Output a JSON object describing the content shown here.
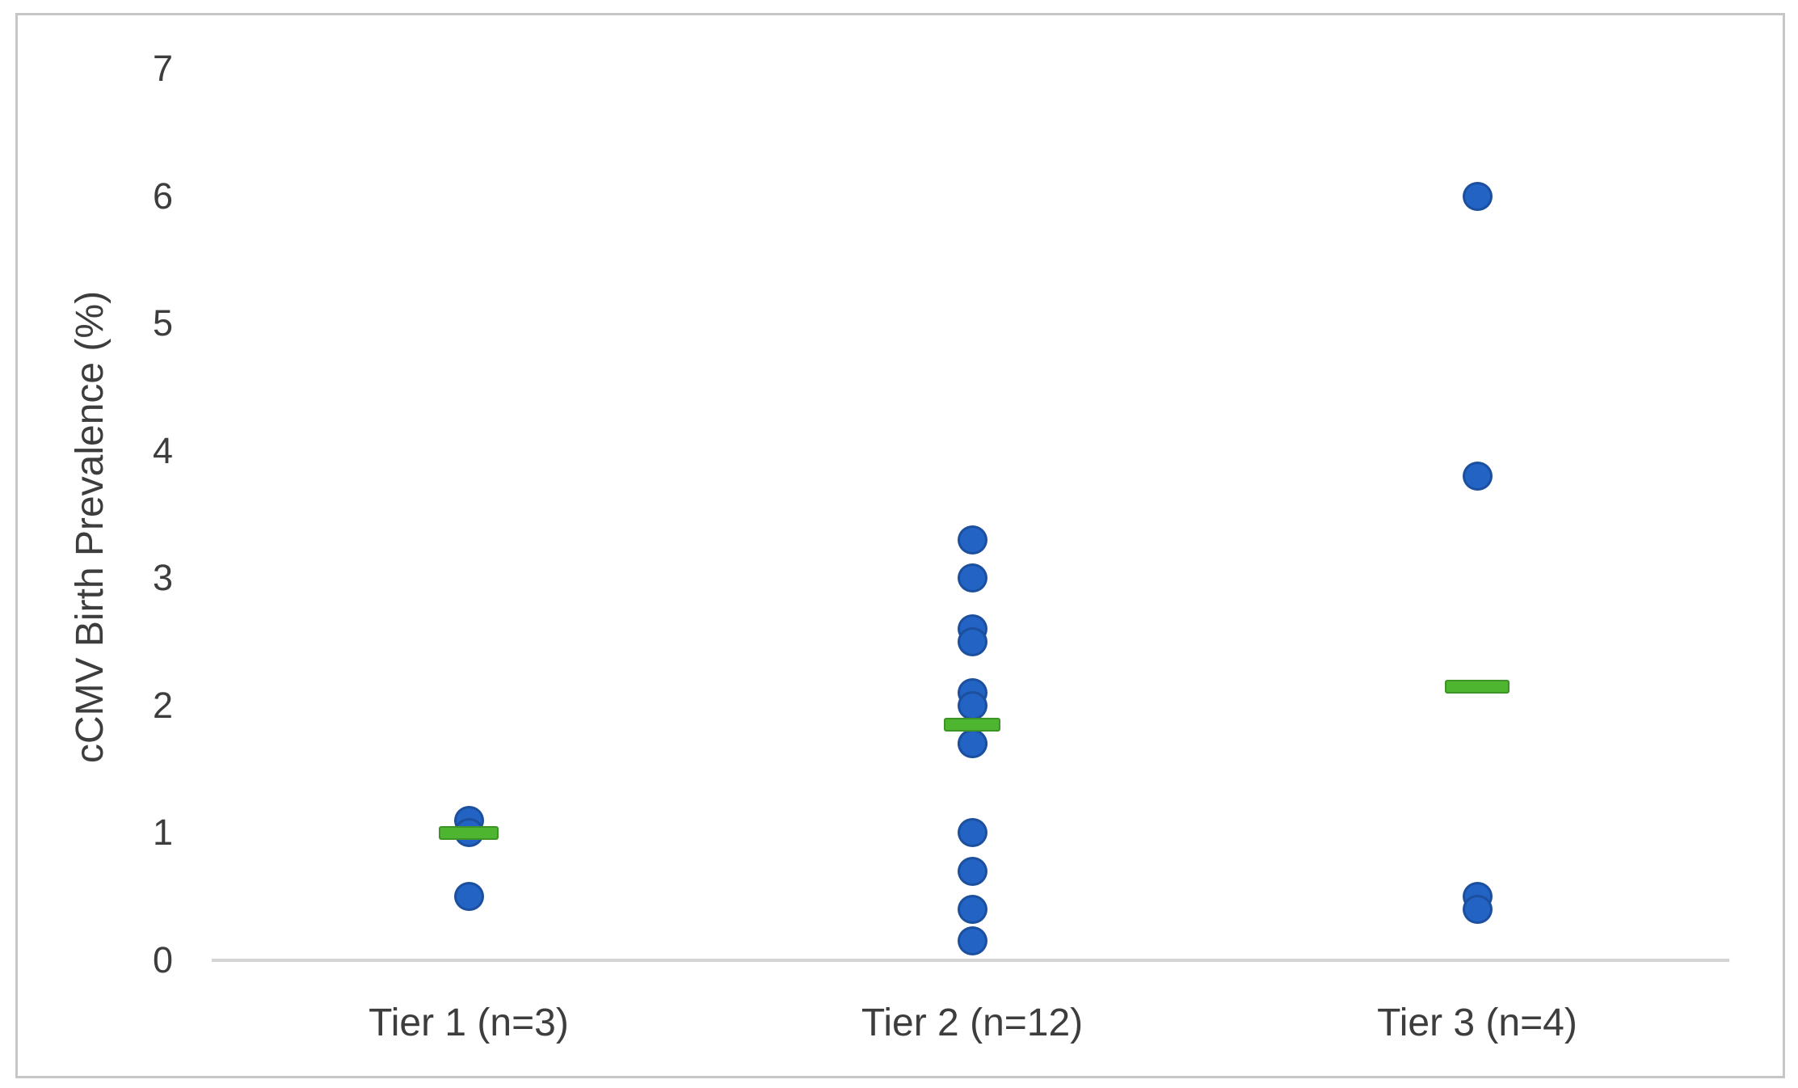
{
  "chart_data": {
    "type": "scatter",
    "title": "",
    "xlabel": "",
    "ylabel": "cCMV Birth Prevalence (%)",
    "ylim": [
      0,
      7
    ],
    "yticks": [
      0,
      1,
      2,
      3,
      4,
      5,
      6,
      7
    ],
    "grid": false,
    "legend_position": "none",
    "marker_color": "#2263c3",
    "median_marker_color": "#4eb531",
    "groups": [
      {
        "label": "Tier 1 (n=3)",
        "n": 3,
        "values": [
          1.1,
          1.0,
          0.5
        ],
        "median": 1.0
      },
      {
        "label": "Tier 2 (n=12)",
        "n": 12,
        "values": [
          3.3,
          3.0,
          2.6,
          2.5,
          2.1,
          2.0,
          1.7,
          1.7,
          1.0,
          0.7,
          0.4,
          0.15
        ],
        "median": 1.85
      },
      {
        "label": "Tier 3 (n=4)",
        "n": 4,
        "values": [
          6.0,
          3.8,
          0.5,
          0.4
        ],
        "median": 2.15
      }
    ]
  }
}
